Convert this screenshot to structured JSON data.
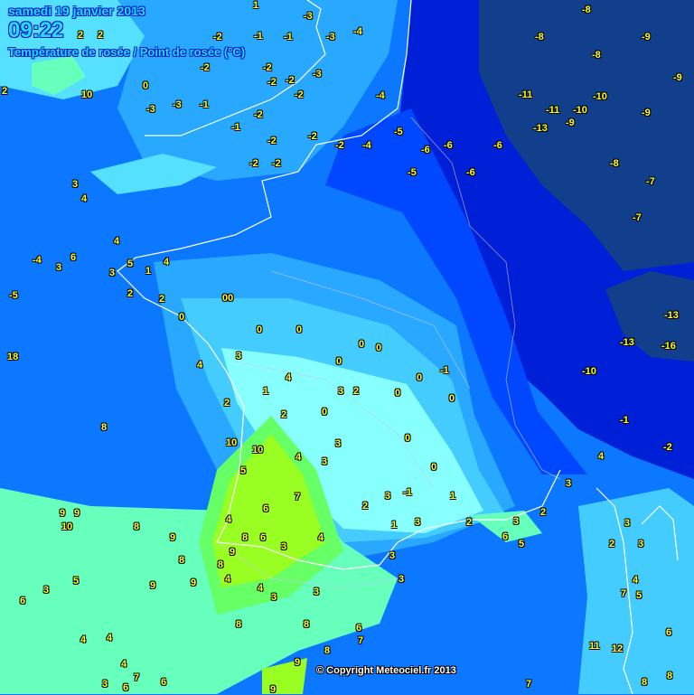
{
  "header": {
    "date": "samedi 19 janvier 2013",
    "time": "09:22",
    "title": "Température de rosée / Point de rosée (°C)"
  },
  "copyright": "© Copyright Meteociel.fr 2013",
  "colors": {
    "navy": "#123f8c",
    "deep_blue": "#0020d8",
    "blue": "#0048ff",
    "mid_blue": "#0b78ff",
    "light_blue": "#28a8ff",
    "sky": "#44ccff",
    "cyan": "#88ffff",
    "aqua_green": "#66ffbb",
    "green": "#66ff66",
    "yellow_green": "#99ff22",
    "value_text": "#ffff22",
    "coast": "#ffffff"
  },
  "stations": [
    "2",
    "2",
    "2",
    "10",
    "0",
    "-3",
    "-3",
    "-1",
    "-2",
    "-2",
    "-1",
    "-2",
    "-2",
    "-3",
    "-3",
    "-4",
    "-3",
    "1",
    "-1",
    "-2",
    "-2",
    "-2",
    "-1",
    "-2",
    "-2",
    "-2",
    "-2",
    "-2",
    "-4",
    "-4",
    "-5",
    "-5",
    "-6",
    "-6",
    "-6",
    "-6",
    "-11",
    "-11",
    "-10",
    "-10",
    "-13",
    "-9",
    "-8",
    "-8",
    "-9",
    "-9",
    "-9",
    "-8",
    "-8",
    "-7",
    "-7",
    "-13",
    "-13",
    "-16",
    "-10",
    "-1",
    "-2",
    "4",
    "2",
    "3",
    "3",
    "3",
    "2",
    "4",
    "7",
    "5",
    "11",
    "12",
    "8",
    "6",
    "8",
    "7",
    "6",
    "5",
    "1",
    "-1",
    "0",
    "0",
    "0",
    "0",
    "-1",
    "0",
    "0",
    "0",
    "0",
    "0",
    "0",
    "00",
    "0",
    "2",
    "1",
    "2",
    "4",
    "3",
    "5",
    "-4",
    "3",
    "6",
    "-5",
    "18",
    "3",
    "4",
    "4",
    "4",
    "3",
    "1",
    "2",
    "4",
    "0",
    "3",
    "2",
    "2",
    "4",
    "3",
    "3",
    "2",
    "3",
    "1",
    "3",
    "2",
    "3",
    "3",
    "3",
    "4",
    "3",
    "6",
    "8",
    "9",
    "4",
    "4",
    "3",
    "3",
    "8",
    "8",
    "6",
    "7",
    "8",
    "9",
    "9",
    "10",
    "10",
    "5",
    "6",
    "7",
    "4",
    "9",
    "9",
    "10",
    "8",
    "9",
    "8",
    "8",
    "9",
    "9",
    "5",
    "3",
    "6",
    "4",
    "4",
    "4",
    "7",
    "3",
    "6",
    "6",
    "8",
    "8"
  ]
}
